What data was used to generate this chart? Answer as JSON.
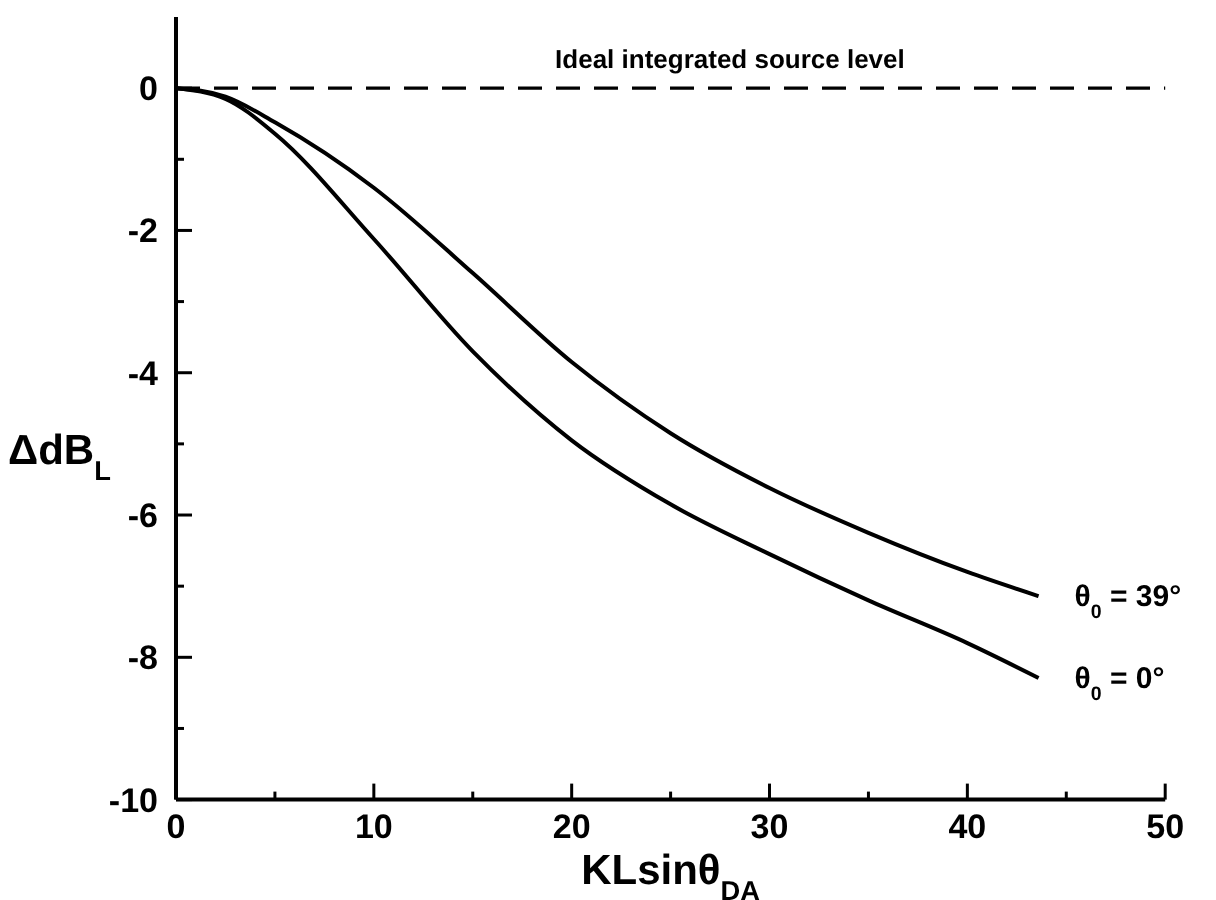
{
  "chart_data": {
    "type": "line",
    "xlabel": "KLsinθ$_{DA}$",
    "ylabel": "ΔdB$_{L}$",
    "xlim": [
      0,
      50
    ],
    "ylim": [
      -10,
      1
    ],
    "xticks": [
      0,
      {
        "value": 5,
        "label": null
      },
      10,
      {
        "value": 15,
        "label": null
      },
      20,
      {
        "value": 25,
        "label": null
      },
      30,
      {
        "value": 35,
        "label": null
      },
      40,
      {
        "value": 45,
        "label": null
      },
      50
    ],
    "yticks": [
      -10,
      {
        "value": -9,
        "label": null
      },
      -8,
      {
        "value": -7,
        "label": null
      },
      -6,
      {
        "value": -5,
        "label": null
      },
      -4,
      {
        "value": -3,
        "label": null
      },
      -2,
      {
        "value": -1,
        "label": null
      },
      0
    ],
    "grid": false,
    "legend": false,
    "marker": "none",
    "line_style": "solid",
    "x": [
      0,
      2.5,
      5,
      10,
      15,
      20,
      25,
      30,
      35,
      40,
      43.6
    ],
    "series": [
      {
        "name": "θ$_{0}$ = 39°",
        "color": "#000000",
        "values": [
          0,
          -0.12,
          -0.48,
          -1.4,
          -2.6,
          -3.85,
          -4.85,
          -5.62,
          -6.25,
          -6.8,
          -7.14
        ]
      },
      {
        "name": "θ$_{0}$ = 0°",
        "color": "#000000",
        "values": [
          0,
          -0.15,
          -0.64,
          -2.12,
          -3.7,
          -4.95,
          -5.85,
          -6.55,
          -7.2,
          -7.8,
          -8.29
        ]
      }
    ],
    "ref_lines": [
      {
        "axis": "y",
        "value": 0,
        "label": "Ideal integrated source level",
        "color": "#000000",
        "line_style": "dashed"
      }
    ]
  }
}
